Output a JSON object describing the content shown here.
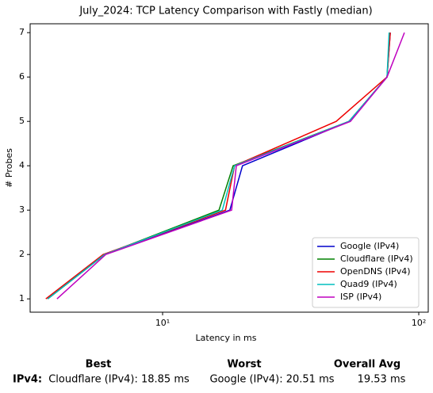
{
  "chart_data": {
    "type": "line",
    "title": "July_2024: TCP Latency Comparison with Fastly (median)",
    "x_label": "Latency in ms",
    "y_label": "# Probes",
    "x_log": true,
    "xlim": [
      3.04,
      108.9
    ],
    "xticks": [
      {
        "value": 10,
        "label": "10¹"
      },
      {
        "value": 100,
        "label": "10²"
      }
    ],
    "ylim": [
      0.7,
      7.2
    ],
    "yticks": [
      1,
      2,
      3,
      4,
      5,
      6,
      7
    ],
    "legend": "lower right",
    "series": [
      {
        "name": "Google (IPv4)",
        "color": "#0000cc",
        "x": [
          3.56,
          5.94,
          18.3,
          20.51,
          53.4,
          75.2,
          77.4
        ],
        "values": [
          1,
          2,
          3,
          4,
          5,
          6,
          7
        ]
      },
      {
        "name": "Cloudflare (IPv4)",
        "color": "#008000",
        "x": [
          3.56,
          5.94,
          16.6,
          18.85,
          53.4,
          75.2,
          77.0
        ],
        "values": [
          1,
          2,
          3,
          4,
          5,
          6,
          7
        ]
      },
      {
        "name": "OpenDNS (IPv4)",
        "color": "#ee0000",
        "x": [
          3.5,
          5.86,
          17.6,
          19.1,
          47.6,
          75.2,
          77.4
        ],
        "values": [
          1,
          2,
          3,
          4,
          5,
          6,
          7
        ]
      },
      {
        "name": "Quad9 (IPv4)",
        "color": "#00bfbf",
        "x": [
          3.56,
          5.94,
          17.1,
          19.1,
          53.4,
          75.2,
          76.6
        ],
        "values": [
          1,
          2,
          3,
          4,
          5,
          6,
          7
        ]
      },
      {
        "name": "ISP (IPv4)",
        "color": "#bf00bf",
        "x": [
          3.87,
          6.0,
          18.6,
          19.4,
          54.1,
          75.2,
          87.9
        ],
        "values": [
          1,
          2,
          3,
          4,
          5,
          6,
          7
        ]
      }
    ]
  },
  "summary": {
    "columns": [
      "Best",
      "Worst",
      "Overall Avg"
    ],
    "rows": [
      {
        "label": "IPv4:",
        "cells": [
          "Cloudflare (IPv4): 18.85 ms",
          "Google (IPv4): 20.51 ms",
          "19.53 ms"
        ]
      }
    ]
  }
}
